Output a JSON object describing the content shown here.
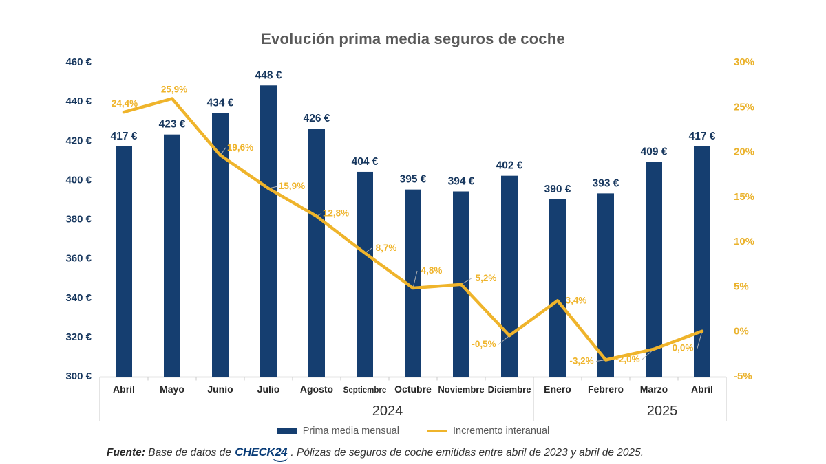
{
  "chart_data": {
    "type": "bar+line",
    "title": "Evolución prima media seguros de coche",
    "categories": [
      "Abril",
      "Mayo",
      "Junio",
      "Julio",
      "Agosto",
      "Septiembre",
      "Octubre",
      "Noviembre",
      "Diciembre",
      "Enero",
      "Febrero",
      "Marzo",
      "Abril"
    ],
    "year_groups": [
      {
        "label": "2024",
        "start": 0,
        "end": 8
      },
      {
        "label": "2025",
        "start": 9,
        "end": 12
      }
    ],
    "series": [
      {
        "name": "Prima media mensual",
        "type": "bar",
        "axis": "left",
        "color": "#153E70",
        "values": [
          417,
          423,
          434,
          448,
          426,
          404,
          395,
          394,
          402,
          390,
          393,
          409,
          417
        ],
        "labels": [
          "417 €",
          "423 €",
          "434 €",
          "448 €",
          "426 €",
          "404 €",
          "395 €",
          "394 €",
          "402 €",
          "390 €",
          "393 €",
          "409 €",
          "417 €"
        ]
      },
      {
        "name": "Incremento interanual",
        "type": "line",
        "axis": "right",
        "color": "#EFB42B",
        "values": [
          24.4,
          25.9,
          19.6,
          15.9,
          12.8,
          8.7,
          4.8,
          5.2,
          -0.5,
          3.4,
          -3.2,
          -2.0,
          0.0
        ],
        "labels": [
          "24,4%",
          "25,9%",
          "19,6%",
          "15,9%",
          "12,8%",
          "8,7%",
          "4,8%",
          "5,2%",
          "-0,5%",
          "3,4%",
          "-3,2%",
          "-2,0%",
          "0,0%"
        ],
        "label_offsets": [
          [
            1,
            -12
          ],
          [
            3,
            -13
          ],
          [
            29,
            -11
          ],
          [
            34,
            -3
          ],
          [
            28,
            -4
          ],
          [
            31,
            -7
          ],
          [
            27,
            -25
          ],
          [
            36,
            -9
          ],
          [
            -37,
            13
          ],
          [
            27,
            0
          ],
          [
            -35,
            2
          ],
          [
            -38,
            15
          ],
          [
            -28,
            25
          ]
        ],
        "label_callouts": [
          false,
          false,
          true,
          true,
          true,
          true,
          true,
          true,
          true,
          false,
          true,
          true,
          true
        ]
      }
    ],
    "left_axis": {
      "min": 300,
      "max": 460,
      "step": 20,
      "color": "#17375E",
      "ticks": [
        "460 €",
        "440 €",
        "420 €",
        "400 €",
        "380 €",
        "360 €",
        "340 €",
        "320 €",
        "300 €"
      ]
    },
    "right_axis": {
      "min": -5,
      "max": 30,
      "step": 5,
      "color": "#EAB22C",
      "ticks": [
        "30%",
        "25%",
        "20%",
        "15%",
        "10%",
        "5%",
        "0%",
        "-5%"
      ]
    },
    "grid": false,
    "legend_position": "bottom"
  },
  "footer": {
    "fuente_label": "Fuente:",
    "text_before_logo": " Base de datos de ",
    "logo_check": "CHECK",
    "logo_24": "24",
    "text_after_logo": " . Pólizas de seguros de coche emitidas entre abril de 2023 y abril de 2025."
  }
}
